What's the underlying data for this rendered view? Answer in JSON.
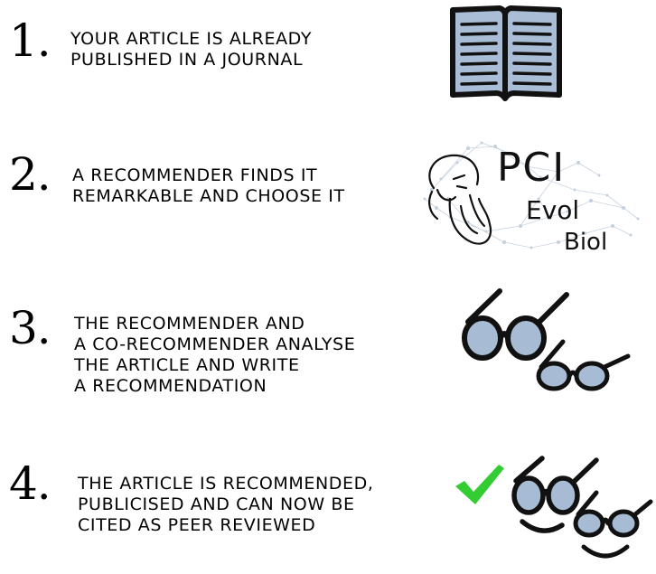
{
  "steps": [
    {
      "number": "1.",
      "lines": [
        "YOUR ARTICLE IS ALREADY",
        "PUBLISHED IN A JOURNAL"
      ],
      "icon": "open-book-icon"
    },
    {
      "number": "2.",
      "lines": [
        "A RECOMMENDER FINDS IT",
        "REMARKABLE AND CHOOSE IT"
      ],
      "icon": "pci-evol-biol-logo"
    },
    {
      "number": "3.",
      "lines": [
        "THE RECOMMENDER AND",
        "A CO-RECOMMENDER ANALYSE",
        "THE ARTICLE AND WRITE",
        "A RECOMMENDATION"
      ],
      "icon": "two-glasses-icon"
    },
    {
      "number": "4.",
      "lines": [
        "THE ARTICLE IS RECOMMENDED,",
        "PUBLICISED AND CAN NOW BE",
        "CITED AS PEER REVIEWED"
      ],
      "icon": "smiling-glasses-check-icon"
    }
  ],
  "logo": {
    "line1": "PCI",
    "line2": "Evol",
    "line3": "Biol"
  },
  "colors": {
    "lens": "#a7bcd4",
    "check": "#33cc33",
    "network": "#b8c6d6",
    "book_page": "#a9bdd6"
  }
}
